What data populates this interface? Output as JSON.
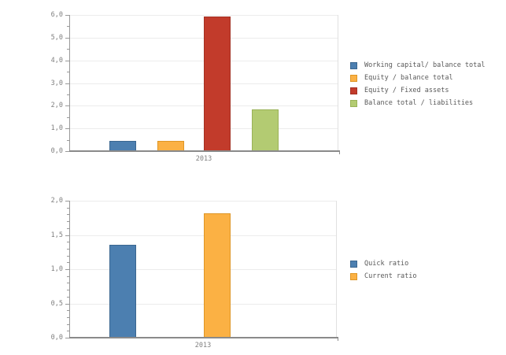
{
  "colors": {
    "background": "#FFFFFF",
    "grid": "#ECECEC",
    "axis": "#999999",
    "baseline": "#8A8A8A",
    "plot_border": "#E0E0E0",
    "tick_text": "#808080",
    "legend_text": "#595959"
  },
  "chart_data": [
    {
      "name": "solvency-ratios",
      "type": "bar",
      "title": "",
      "categories": [
        "2013"
      ],
      "xlabel": "2013",
      "ylabel": "",
      "ylim": [
        0,
        6
      ],
      "ytick_values": [
        0,
        1,
        2,
        3,
        4,
        5,
        6
      ],
      "ytick_labels": [
        "0,0",
        "1,0",
        "2,0",
        "3,0",
        "4,0",
        "5,0",
        "6,0"
      ],
      "minor_tick_step": 0.5,
      "grid": true,
      "legend_position": "right",
      "bar_center_fractions": [
        0.2,
        0.377,
        0.551,
        0.729
      ],
      "series": [
        {
          "name": "Working capital/ balance total",
          "color": "#4C7FB0",
          "border_color": "#3A6690",
          "values": [
            0.4
          ]
        },
        {
          "name": "Equity / balance total",
          "color": "#FBB144",
          "border_color": "#DE9626",
          "values": [
            0.4
          ]
        },
        {
          "name": "Equity / Fixed assets",
          "color": "#C23B2B",
          "border_color": "#A33023",
          "values": [
            5.9
          ]
        },
        {
          "name": "Balance total / liabilities",
          "color": "#B3CB72",
          "border_color": "#99B257",
          "values": [
            1.8
          ]
        }
      ]
    },
    {
      "name": "liquidity-ratios",
      "type": "bar",
      "title": "",
      "categories": [
        "2013"
      ],
      "xlabel": "2013",
      "ylabel": "",
      "ylim": [
        0,
        2
      ],
      "ytick_values": [
        0,
        0.5,
        1,
        1.5,
        2
      ],
      "ytick_labels": [
        "0,0",
        "0,5",
        "1,0",
        "1,5",
        "2,0"
      ],
      "minor_tick_step": 0.1,
      "grid": true,
      "legend_position": "right",
      "bar_center_fractions": [
        0.2,
        0.553
      ],
      "series": [
        {
          "name": "Quick ratio",
          "color": "#4C7FB0",
          "border_color": "#3A6690",
          "values": [
            1.35
          ]
        },
        {
          "name": "Current ratio",
          "color": "#FBB144",
          "border_color": "#DE9626",
          "values": [
            1.8
          ]
        }
      ]
    }
  ]
}
